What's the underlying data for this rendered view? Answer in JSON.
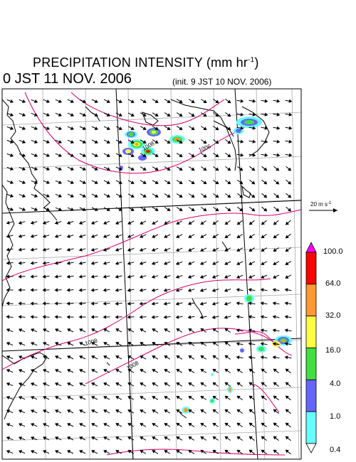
{
  "title": {
    "main": "PRECIPITATION INTENSITY (mm hr",
    "sup": "-1",
    "close": ")"
  },
  "valid_time": "0 JST 11 NOV. 2006",
  "init_time": "(init. 9 JST 10 NOV. 2006)",
  "wind_reference": {
    "label": "20 m s",
    "sup": "-1"
  },
  "colorbar": {
    "labels": [
      "100.0",
      "64.0",
      "32.0",
      "16.0",
      "4.0",
      "1.0",
      "0.4"
    ],
    "colors": [
      "#ff00ff",
      "#ff0000",
      "#ff9933",
      "#ffff44",
      "#44dd44",
      "#6666ff",
      "#66ffff",
      "#ffffff"
    ]
  },
  "contour_labels": [
    "1006",
    "1008",
    "1008",
    "1008"
  ],
  "colors": {
    "isobar": "#d4006e",
    "grid": "#aaaaaa",
    "coast": "#000000"
  }
}
